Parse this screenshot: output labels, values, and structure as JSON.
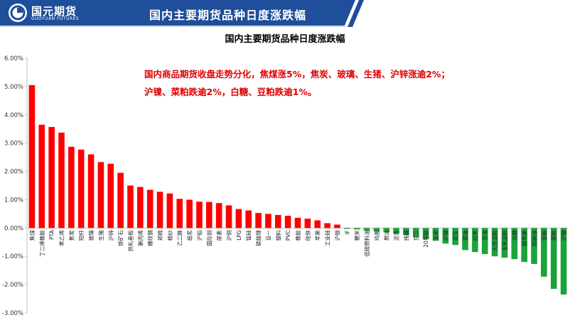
{
  "header": {
    "logo_text": "国元期货",
    "logo_sub": "GUOYUAN FUTURES",
    "title": "国内主要期货品种日度涨跌幅"
  },
  "colors": {
    "header_blue": "#1f4e9a",
    "up": "#ff0000",
    "down": "#1aa33a"
  },
  "annotation": "国内商品期货收盘走势分化，焦煤涨5%，焦炭、玻璃、生猪、沪锌涨逾2%；沪镍、菜粕跌逾2%，白糖、豆粕跌逾1%。",
  "chart_data": {
    "type": "bar",
    "title": "国内主要期货品种日度涨跌幅",
    "ylim": [
      -3.0,
      6.0
    ],
    "yticks": [
      "-3.00%",
      "-2.00%",
      "-1.00%",
      "0.00%",
      "1.00%",
      "2.00%",
      "3.00%",
      "4.00%",
      "5.00%",
      "6.00%"
    ],
    "grid": false,
    "categories": [
      "焦煤",
      "丁二烯橡胶",
      "PTA",
      "苯乙烯",
      "焦炭",
      "短纤",
      "玻璃",
      "生猪",
      "沪锌",
      "铁矿石",
      "热轧卷板",
      "聚丙烯",
      "螺纹钢",
      "郑棉",
      "棉纱",
      "乙二醇",
      "纸浆",
      "沪铅",
      "国际铜",
      "尿素",
      "沪铜",
      "LPG",
      "锰硅",
      "碳酸锂",
      "豆一",
      "塑料",
      "PVC",
      "橡胶",
      "硅铁",
      "苹果",
      "工业硅",
      "沪银",
      "IF",
      "粳米",
      "低硫燃料油",
      "鸡蛋",
      "燃油",
      "沥青",
      "纯碱",
      "豆二",
      "20号胶",
      "玉米",
      "沪锡",
      "花生",
      "菜油",
      "红枣",
      "豆油",
      "大豆淀粉",
      "玉米淀粉",
      "白糖",
      "鲜苹果",
      "棕榈油",
      "豆粕",
      "菜粕",
      "沪镍"
    ],
    "values": [
      5.05,
      3.65,
      3.57,
      3.37,
      2.87,
      2.77,
      2.6,
      2.33,
      2.27,
      1.95,
      1.5,
      1.45,
      1.35,
      1.28,
      1.22,
      1.03,
      1.0,
      0.93,
      0.92,
      0.88,
      0.8,
      0.67,
      0.62,
      0.53,
      0.5,
      0.46,
      0.43,
      0.36,
      0.33,
      0.27,
      0.17,
      0.12,
      -0.03,
      -0.05,
      -0.1,
      -0.12,
      -0.15,
      -0.2,
      -0.25,
      -0.32,
      -0.4,
      -0.45,
      -0.55,
      -0.6,
      -0.78,
      -0.85,
      -0.92,
      -1.0,
      -1.05,
      -1.1,
      -1.2,
      -1.27,
      -1.72,
      -2.15,
      -2.35
    ]
  }
}
